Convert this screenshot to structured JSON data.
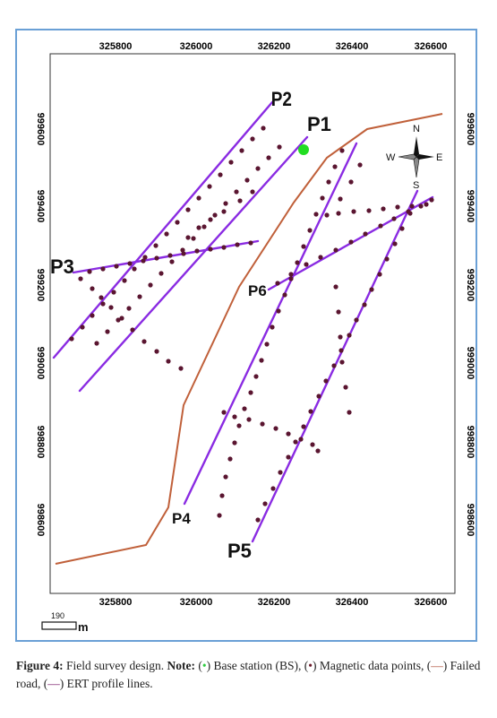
{
  "map": {
    "x_ticks": [
      "325800",
      "326000",
      "326200",
      "326400",
      "326600"
    ],
    "y_ticks": [
      "999600",
      "999400",
      "999200",
      "999000",
      "998800",
      "998600"
    ],
    "profiles": [
      {
        "label": "P1"
      },
      {
        "label": "P2"
      },
      {
        "label": "P3"
      },
      {
        "label": "P4"
      },
      {
        "label": "P5"
      },
      {
        "label": "P6"
      }
    ],
    "compass": {
      "n": "N",
      "s": "S",
      "e": "E",
      "w": "W"
    },
    "scale_bar": {
      "value": "190",
      "unit": "m"
    },
    "colors": {
      "frame": "#6aa0d6",
      "profile_line": "#8a2be2",
      "road": "#c0603a",
      "magnetic_point": "#5a1530",
      "base_station": "#22dd22"
    }
  },
  "caption": {
    "figure": "Figure 4:",
    "title": " Field survey design. ",
    "note_label": "Note:",
    "bs_text": " Base station (BS), (",
    "mag_text": ") Magnetic data points, (",
    "road_text": ") Failed road, (",
    "ert_text": ") ERT profile lines."
  }
}
